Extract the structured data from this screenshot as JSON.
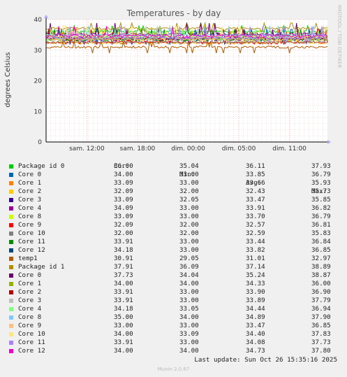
{
  "chart_data": {
    "type": "line",
    "title": "Temperatures - by day",
    "ylabel": "degrees Celsius",
    "side_label": "RRDTOOL / TOBI OETIKER",
    "ylim": [
      0,
      40
    ],
    "yticks": [
      "0",
      "10",
      "20",
      "30",
      "40"
    ],
    "xticks": [
      "sam. 12:00",
      "sam. 18:00",
      "dim. 00:00",
      "dim. 05:00",
      "dim. 11:00"
    ],
    "grid": true,
    "legend_headers": [
      "Cur:",
      "Min:",
      "Avg:",
      "Max:"
    ],
    "series": [
      {
        "name": "Package id 0",
        "color": "#00cc00",
        "cur": "36.00",
        "min": "35.04",
        "avg": "36.11",
        "max": "37.93"
      },
      {
        "name": "Core 0",
        "color": "#0066b3",
        "cur": "34.00",
        "min": "33.00",
        "avg": "33.85",
        "max": "36.79"
      },
      {
        "name": "Core 1",
        "color": "#ff8000",
        "cur": "33.09",
        "min": "33.00",
        "avg": "33.66",
        "max": "35.93"
      },
      {
        "name": "Core 2",
        "color": "#ffcc00",
        "cur": "32.09",
        "min": "32.00",
        "avg": "32.43",
        "max": "35.73"
      },
      {
        "name": "Core 3",
        "color": "#330099",
        "cur": "33.09",
        "min": "32.05",
        "avg": "33.47",
        "max": "35.85"
      },
      {
        "name": "Core 4",
        "color": "#990099",
        "cur": "34.09",
        "min": "33.00",
        "avg": "33.91",
        "max": "36.82"
      },
      {
        "name": "Core 8",
        "color": "#ccff00",
        "cur": "33.09",
        "min": "33.00",
        "avg": "33.70",
        "max": "36.79"
      },
      {
        "name": "Core 9",
        "color": "#ff0000",
        "cur": "32.09",
        "min": "32.00",
        "avg": "32.57",
        "max": "36.81"
      },
      {
        "name": "Core 10",
        "color": "#808080",
        "cur": "32.00",
        "min": "32.00",
        "avg": "32.59",
        "max": "35.83"
      },
      {
        "name": "Core 11",
        "color": "#008f00",
        "cur": "33.91",
        "min": "33.00",
        "avg": "33.44",
        "max": "36.84"
      },
      {
        "name": "Core 12",
        "color": "#00487d",
        "cur": "34.18",
        "min": "33.00",
        "avg": "33.82",
        "max": "36.85"
      },
      {
        "name": "temp1",
        "color": "#b35a00",
        "cur": "30.91",
        "min": "29.05",
        "avg": "31.01",
        "max": "32.97"
      },
      {
        "name": "Package id 1",
        "color": "#b38f00",
        "cur": "37.91",
        "min": "36.09",
        "avg": "37.14",
        "max": "38.89"
      },
      {
        "name": "Core 0",
        "color": "#6b006b",
        "cur": "37.73",
        "min": "34.04",
        "avg": "35.24",
        "max": "38.87"
      },
      {
        "name": "Core 1",
        "color": "#8fb300",
        "cur": "34.00",
        "min": "34.00",
        "avg": "34.33",
        "max": "36.00"
      },
      {
        "name": "Core 2",
        "color": "#b30000",
        "cur": "33.91",
        "min": "33.00",
        "avg": "33.90",
        "max": "36.90"
      },
      {
        "name": "Core 3",
        "color": "#bebebe",
        "cur": "33.91",
        "min": "33.00",
        "avg": "33.89",
        "max": "37.79"
      },
      {
        "name": "Core 4",
        "color": "#80ff80",
        "cur": "34.18",
        "min": "33.05",
        "avg": "34.44",
        "max": "36.94"
      },
      {
        "name": "Core 8",
        "color": "#80c9ff",
        "cur": "35.00",
        "min": "34.00",
        "avg": "34.89",
        "max": "37.90"
      },
      {
        "name": "Core 9",
        "color": "#ffc080",
        "cur": "33.00",
        "min": "33.00",
        "avg": "33.47",
        "max": "36.85"
      },
      {
        "name": "Core 10",
        "color": "#ffe680",
        "cur": "34.00",
        "min": "33.09",
        "avg": "34.40",
        "max": "37.83"
      },
      {
        "name": "Core 11",
        "color": "#aa80ff",
        "cur": "33.91",
        "min": "33.00",
        "avg": "34.08",
        "max": "37.73"
      },
      {
        "name": "Core 12",
        "color": "#ee00cc",
        "cur": "34.00",
        "min": "34.00",
        "avg": "34.73",
        "max": "37.80"
      }
    ]
  },
  "footer": {
    "last_update": "Last update: Sun Oct 26 15:35:16 2025",
    "munin_version": "Munin 2.0.67"
  }
}
